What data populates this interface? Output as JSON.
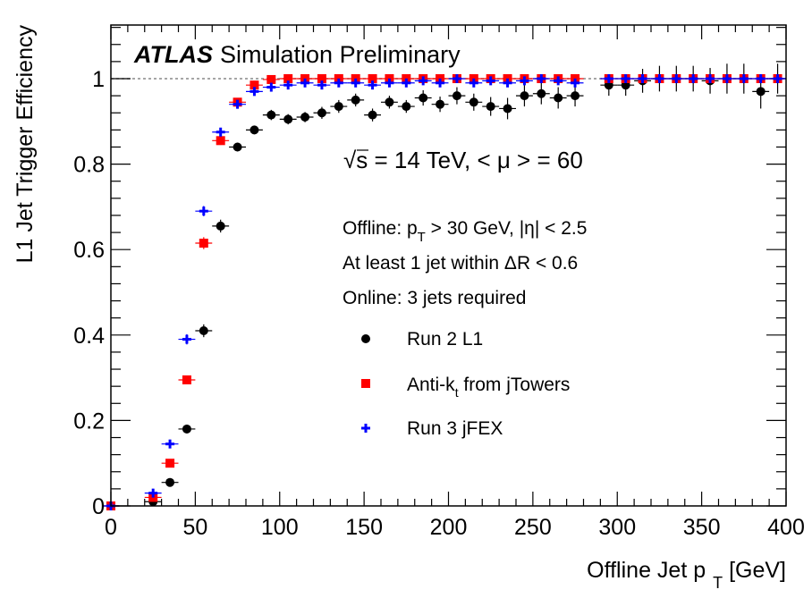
{
  "chart_data": {
    "type": "scatter",
    "xlabel_main": "Offline Jet p",
    "xlabel_sub": "T",
    "xlabel_unit": " [GeV]",
    "ylabel": "L1 Jet Trigger Efficiency",
    "xlim": [
      0,
      400
    ],
    "ylim": [
      0,
      1.12
    ],
    "x_ticks": [
      0,
      50,
      100,
      150,
      200,
      250,
      300,
      350,
      400
    ],
    "x_tick_labels": [
      "0",
      "50",
      "100",
      "150",
      "200",
      "250",
      "300",
      "350",
      "400"
    ],
    "y_ticks": [
      0,
      0.2,
      0.4,
      0.6,
      0.8,
      1
    ],
    "y_tick_labels": [
      "0",
      "0.2",
      "0.4",
      "0.6",
      "0.8",
      "1"
    ],
    "reference_line": 1,
    "brand": "ATLAS",
    "brand_sub": "Simulation Preliminary",
    "energy_sqrt": "√",
    "energy_text": "s = 14 TeV, < μ > = 60",
    "annotations": {
      "offline_prefix": "Offline: p",
      "offline_sub": "T",
      "offline_suffix": " > 30 GeV, |η| < 2.5",
      "match": "At least 1 jet within ΔR < 0.6",
      "online": "Online: 3 jets required"
    },
    "legend_position": "center-right",
    "series": [
      {
        "name": "Run 2 L1",
        "color": "#000000",
        "marker": "circle",
        "x": [
          0,
          25,
          35,
          45,
          55,
          65,
          75,
          85,
          95,
          105,
          115,
          125,
          135,
          145,
          155,
          165,
          175,
          185,
          195,
          205,
          215,
          225,
          235,
          245,
          255,
          265,
          275,
          295,
          305,
          315,
          325,
          335,
          345,
          355,
          365,
          375,
          385,
          395
        ],
        "y": [
          0,
          0.01,
          0.055,
          0.18,
          0.41,
          0.655,
          0.84,
          0.88,
          0.915,
          0.905,
          0.91,
          0.92,
          0.935,
          0.95,
          0.915,
          0.945,
          0.935,
          0.955,
          0.94,
          0.96,
          0.945,
          0.935,
          0.93,
          0.96,
          0.965,
          0.955,
          0.96,
          0.985,
          0.985,
          0.995,
          1.0,
          1.0,
          1.0,
          0.995,
          1.0,
          1.0,
          0.97,
          1.0
        ],
        "yerr": [
          0,
          0.01,
          0.01,
          0.01,
          0.015,
          0.015,
          0.01,
          0.01,
          0.012,
          0.012,
          0.012,
          0.014,
          0.015,
          0.015,
          0.015,
          0.015,
          0.015,
          0.018,
          0.018,
          0.02,
          0.02,
          0.022,
          0.025,
          0.025,
          0.025,
          0.025,
          0.025,
          0.025,
          0.025,
          0.028,
          0.03,
          0.03,
          0.03,
          0.03,
          0.035,
          0.035,
          0.04,
          0.035
        ]
      },
      {
        "name_main": "Anti-k",
        "name_sub": "t",
        "name_suffix": " from jTowers",
        "color": "#ff0000",
        "marker": "square",
        "x": [
          0,
          25,
          35,
          45,
          55,
          65,
          75,
          85,
          95,
          105,
          115,
          125,
          135,
          145,
          155,
          165,
          175,
          185,
          195,
          205,
          215,
          225,
          235,
          245,
          255,
          265,
          275,
          295,
          305,
          315,
          325,
          335,
          345,
          355,
          365,
          375,
          385,
          395
        ],
        "y": [
          0,
          0.02,
          0.1,
          0.295,
          0.615,
          0.855,
          0.945,
          0.985,
          0.998,
          1.0,
          1.0,
          1.0,
          1.0,
          1.0,
          1.0,
          1.0,
          1.0,
          1.0,
          1.0,
          1.0,
          1.0,
          1.0,
          1.0,
          1.0,
          1.0,
          1.0,
          1.0,
          1.0,
          1.0,
          1.0,
          1.0,
          1.0,
          1.0,
          1.0,
          1.0,
          1.0,
          1.0,
          1.0
        ],
        "yerr": [
          0,
          0.01,
          0.008,
          0.01,
          0.014,
          0.01,
          0.006,
          0.004,
          0.002,
          0.002,
          0.002,
          0.002,
          0.002,
          0.002,
          0.002,
          0.002,
          0.002,
          0.002,
          0.002,
          0.002,
          0.002,
          0.002,
          0.002,
          0.002,
          0.002,
          0.002,
          0.002,
          0.002,
          0.002,
          0.002,
          0.002,
          0.002,
          0.002,
          0.002,
          0.002,
          0.002,
          0.002,
          0.002
        ]
      },
      {
        "name": "Run 3 jFEX",
        "color": "#0000ff",
        "marker": "cross",
        "x": [
          0,
          25,
          35,
          45,
          55,
          65,
          75,
          85,
          95,
          105,
          115,
          125,
          135,
          145,
          155,
          165,
          175,
          185,
          195,
          205,
          215,
          225,
          235,
          245,
          255,
          265,
          275,
          295,
          305,
          315,
          325,
          335,
          345,
          355,
          365,
          375,
          385,
          395
        ],
        "y": [
          0,
          0.03,
          0.145,
          0.39,
          0.69,
          0.875,
          0.94,
          0.97,
          0.98,
          0.985,
          0.99,
          0.985,
          0.99,
          0.99,
          0.985,
          0.99,
          0.99,
          0.995,
          0.99,
          1.0,
          0.99,
          0.995,
          0.99,
          0.995,
          1.0,
          0.995,
          0.99,
          1.0,
          1.0,
          1.0,
          1.0,
          1.0,
          1.0,
          1.0,
          1.0,
          1.0,
          1.0,
          1.0
        ],
        "yerr": [
          0,
          0.01,
          0.01,
          0.012,
          0.012,
          0.01,
          0.008,
          0.006,
          0.005,
          0.005,
          0.005,
          0.005,
          0.005,
          0.005,
          0.005,
          0.005,
          0.005,
          0.005,
          0.005,
          0.005,
          0.005,
          0.005,
          0.005,
          0.005,
          0.005,
          0.005,
          0.005,
          0.005,
          0.005,
          0.005,
          0.005,
          0.005,
          0.005,
          0.005,
          0.005,
          0.005,
          0.005,
          0.005
        ]
      }
    ]
  }
}
